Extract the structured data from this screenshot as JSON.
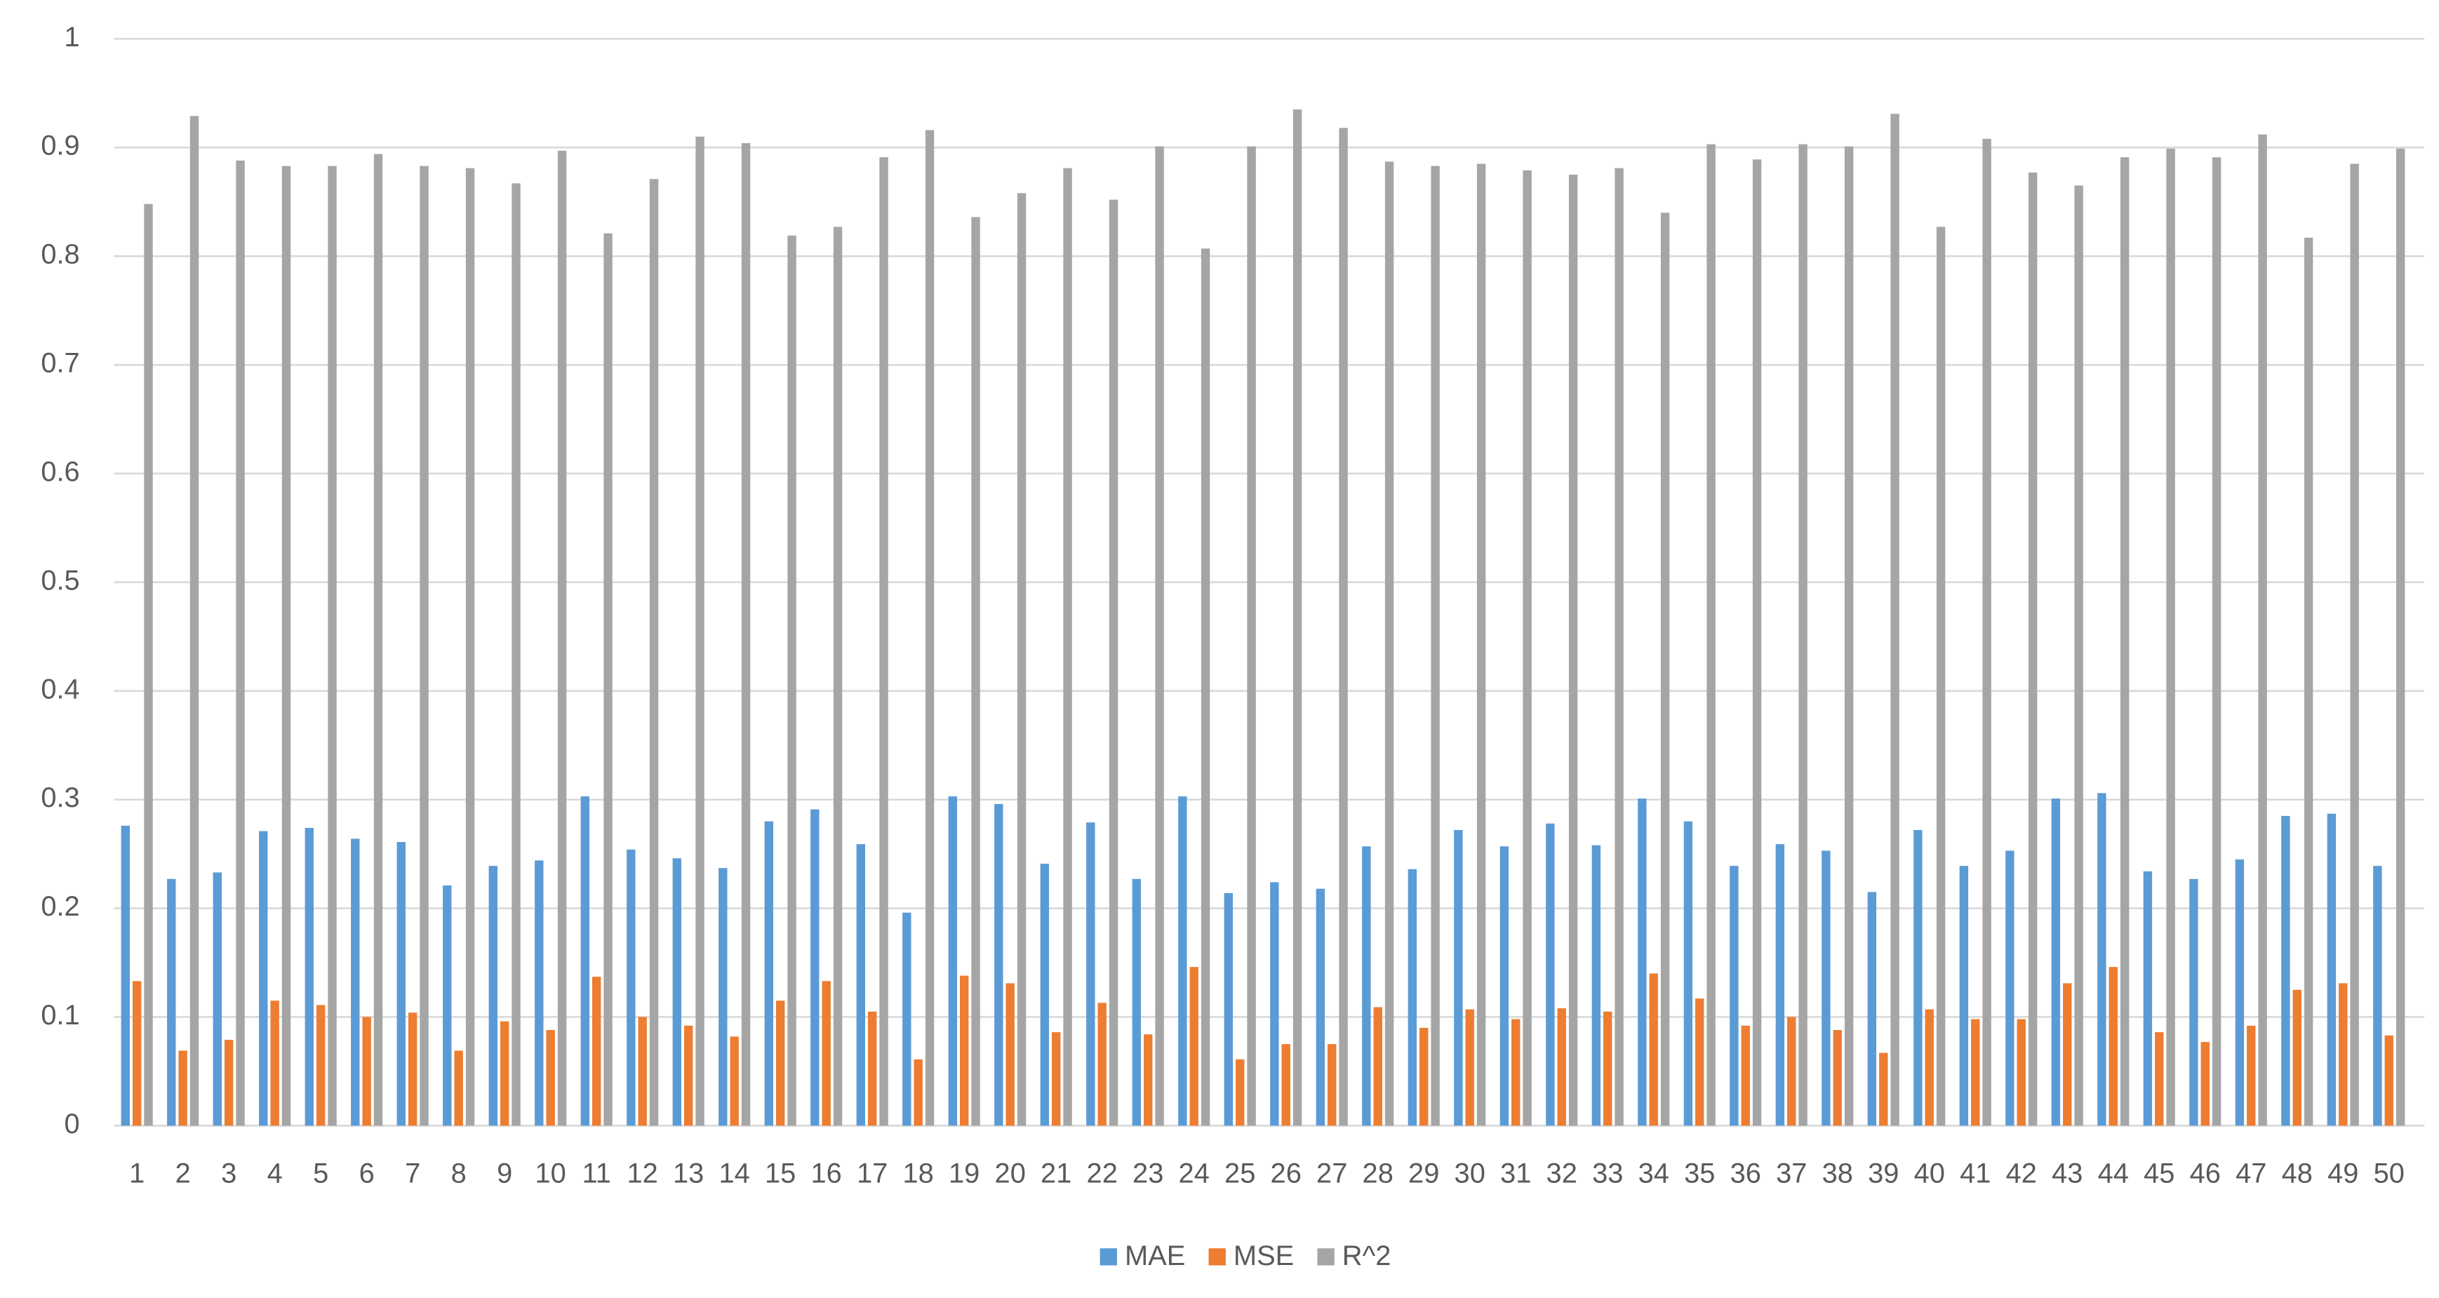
{
  "chart_data": {
    "type": "bar",
    "categories": [
      "1",
      "2",
      "3",
      "4",
      "5",
      "6",
      "7",
      "8",
      "9",
      "10",
      "11",
      "12",
      "13",
      "14",
      "15",
      "16",
      "17",
      "18",
      "19",
      "20",
      "21",
      "22",
      "23",
      "24",
      "25",
      "26",
      "27",
      "28",
      "29",
      "30",
      "31",
      "32",
      "33",
      "34",
      "35",
      "36",
      "37",
      "38",
      "39",
      "40",
      "41",
      "42",
      "43",
      "44",
      "45",
      "46",
      "47",
      "48",
      "49",
      "50"
    ],
    "series": [
      {
        "name": "MAE",
        "color": "#5b9bd5",
        "values": [
          0.276,
          0.227,
          0.233,
          0.271,
          0.274,
          0.264,
          0.261,
          0.221,
          0.239,
          0.244,
          0.303,
          0.254,
          0.246,
          0.237,
          0.28,
          0.291,
          0.259,
          0.196,
          0.303,
          0.296,
          0.241,
          0.279,
          0.227,
          0.303,
          0.214,
          0.224,
          0.218,
          0.257,
          0.236,
          0.272,
          0.257,
          0.278,
          0.258,
          0.301,
          0.28,
          0.239,
          0.259,
          0.253,
          0.215,
          0.272,
          0.239,
          0.253,
          0.301,
          0.306,
          0.234,
          0.227,
          0.245,
          0.285,
          0.287,
          0.239
        ]
      },
      {
        "name": "MSE",
        "color": "#ed7d31",
        "values": [
          0.133,
          0.069,
          0.079,
          0.115,
          0.111,
          0.1,
          0.104,
          0.069,
          0.096,
          0.088,
          0.137,
          0.1,
          0.092,
          0.082,
          0.115,
          0.133,
          0.105,
          0.061,
          0.138,
          0.131,
          0.086,
          0.113,
          0.084,
          0.146,
          0.061,
          0.075,
          0.075,
          0.109,
          0.09,
          0.107,
          0.098,
          0.108,
          0.105,
          0.14,
          0.117,
          0.092,
          0.1,
          0.088,
          0.067,
          0.107,
          0.098,
          0.098,
          0.131,
          0.146,
          0.086,
          0.077,
          0.092,
          0.125,
          0.131,
          0.083
        ]
      },
      {
        "name": "R^2",
        "color": "#a5a5a5",
        "values": [
          0.848,
          0.929,
          0.888,
          0.883,
          0.883,
          0.894,
          0.883,
          0.881,
          0.867,
          0.897,
          0.821,
          0.871,
          0.91,
          0.904,
          0.819,
          0.827,
          0.891,
          0.916,
          0.836,
          0.858,
          0.881,
          0.852,
          0.901,
          0.807,
          0.901,
          0.935,
          0.918,
          0.887,
          0.883,
          0.885,
          0.879,
          0.875,
          0.881,
          0.84,
          0.903,
          0.889,
          0.903,
          0.901,
          0.931,
          0.827,
          0.908,
          0.877,
          0.865,
          0.891,
          0.899,
          0.891,
          0.912,
          0.817,
          0.885,
          0.899
        ]
      }
    ],
    "ylim": [
      0,
      1
    ],
    "yticks": [
      0,
      0.1,
      0.2,
      0.3,
      0.4,
      0.5,
      0.6,
      0.7,
      0.8,
      0.9,
      1
    ],
    "grid": true,
    "legend": "bottom"
  }
}
